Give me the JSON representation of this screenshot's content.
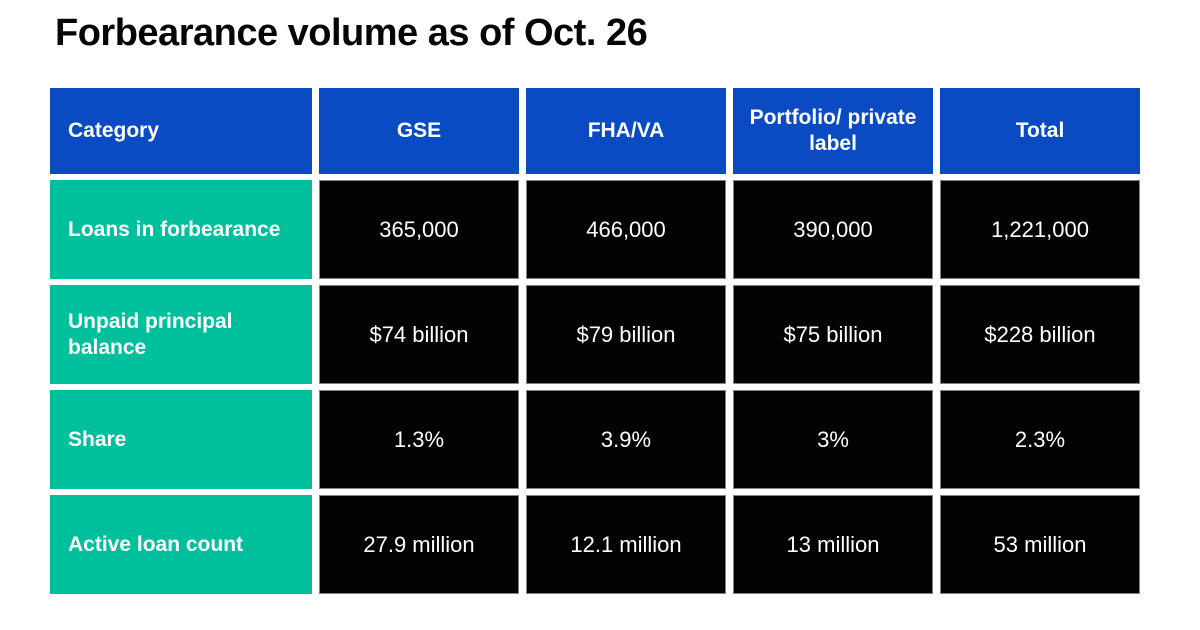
{
  "title": "Forbearance volume as of Oct. 26",
  "colors": {
    "header_bg": "#0A4BC4",
    "row_label_bg": "#00BF9C",
    "value_cell_bg": "#030303",
    "value_cell_border": "#828282",
    "table_text": "#FFFFFF",
    "title_text": "#050505",
    "page_bg": "#FFFFFF"
  },
  "table": {
    "columns": [
      {
        "label": "Category"
      },
      {
        "label": "GSE"
      },
      {
        "label": "FHA/VA"
      },
      {
        "label": "Portfolio/ private label"
      },
      {
        "label": "Total"
      }
    ],
    "rows": [
      {
        "label": "Loans in forbearance",
        "values": [
          "365,000",
          "466,000",
          "390,000",
          "1,221,000"
        ]
      },
      {
        "label": "Unpaid principal balance",
        "values": [
          "$74 billion",
          "$79 billion",
          "$75 billion",
          "$228 billion"
        ]
      },
      {
        "label": "Share",
        "values": [
          "1.3%",
          "3.9%",
          "3%",
          "2.3%"
        ]
      },
      {
        "label": "Active loan count",
        "values": [
          "27.9 million",
          "12.1 million",
          "13 million",
          "53 million"
        ]
      }
    ]
  }
}
